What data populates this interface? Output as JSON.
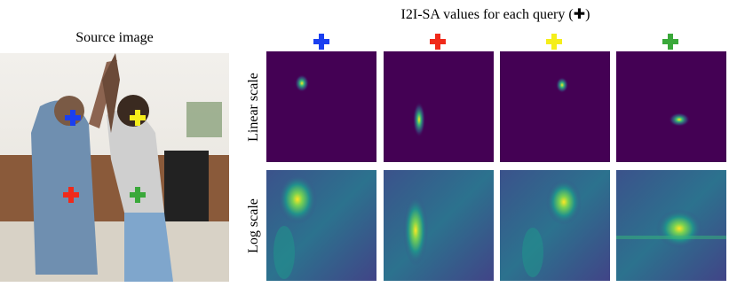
{
  "header": {
    "source_title": "Source image",
    "maps_title": "I2I-SA values for each query (✚)"
  },
  "rows": [
    {
      "label": "Linear scale"
    },
    {
      "label": "Log scale"
    }
  ]
}
